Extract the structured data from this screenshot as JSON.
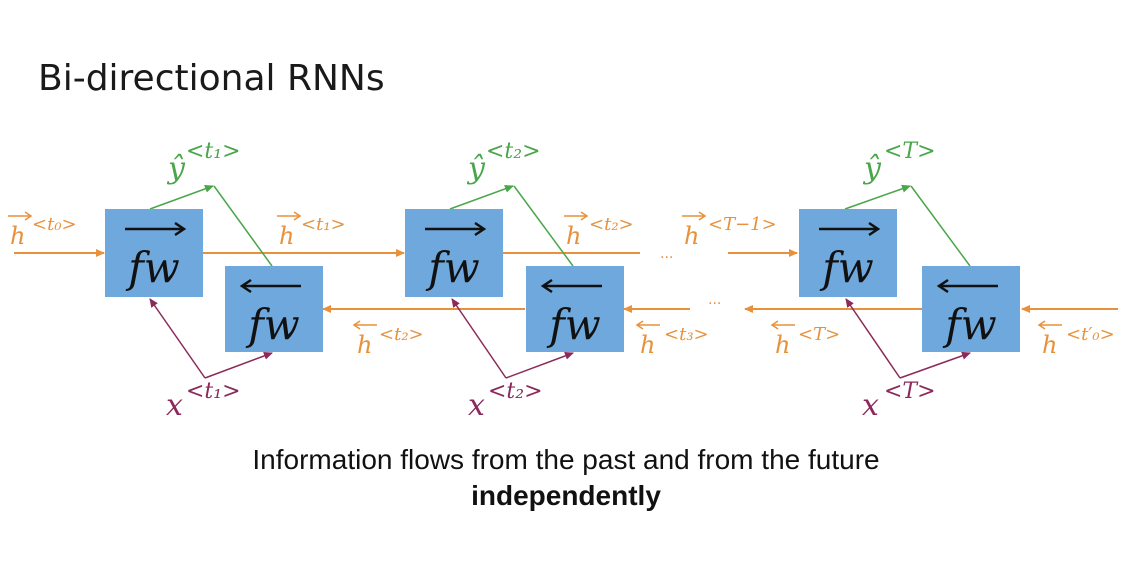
{
  "title": "Bi-directional RNNs",
  "caption": {
    "line1": "Information flows from the past and from the future",
    "line2": "independently"
  },
  "cells": {
    "forward_label": "fw",
    "backward_label": "fw"
  },
  "outputs": [
    {
      "base": "ŷ",
      "sup": "<t₁>"
    },
    {
      "base": "ŷ",
      "sup": "<t₂>"
    },
    {
      "base": "ŷ",
      "sup": "<T>"
    }
  ],
  "inputs": [
    {
      "base": "x",
      "sup": "<t₁>"
    },
    {
      "base": "x",
      "sup": "<t₂>"
    },
    {
      "base": "x",
      "sup": "<T>"
    }
  ],
  "forward_states": [
    {
      "base": "h",
      "sup": "<t₀>"
    },
    {
      "base": "h",
      "sup": "<t₁>"
    },
    {
      "base": "h",
      "sup": "<t₂>"
    },
    {
      "base": "h",
      "sup": "<T−1>"
    }
  ],
  "backward_states": [
    {
      "base": "h",
      "sup": "<t₂>"
    },
    {
      "base": "h",
      "sup": "<t₃>"
    },
    {
      "base": "h",
      "sup": "<T>"
    },
    {
      "base": "h",
      "sup": "<t′₀>"
    }
  ],
  "ellipsis": "...",
  "colors": {
    "box": "#6fa8dc",
    "orange": "#e8913a",
    "green": "#4aa64a",
    "purple": "#8b2a5a"
  }
}
